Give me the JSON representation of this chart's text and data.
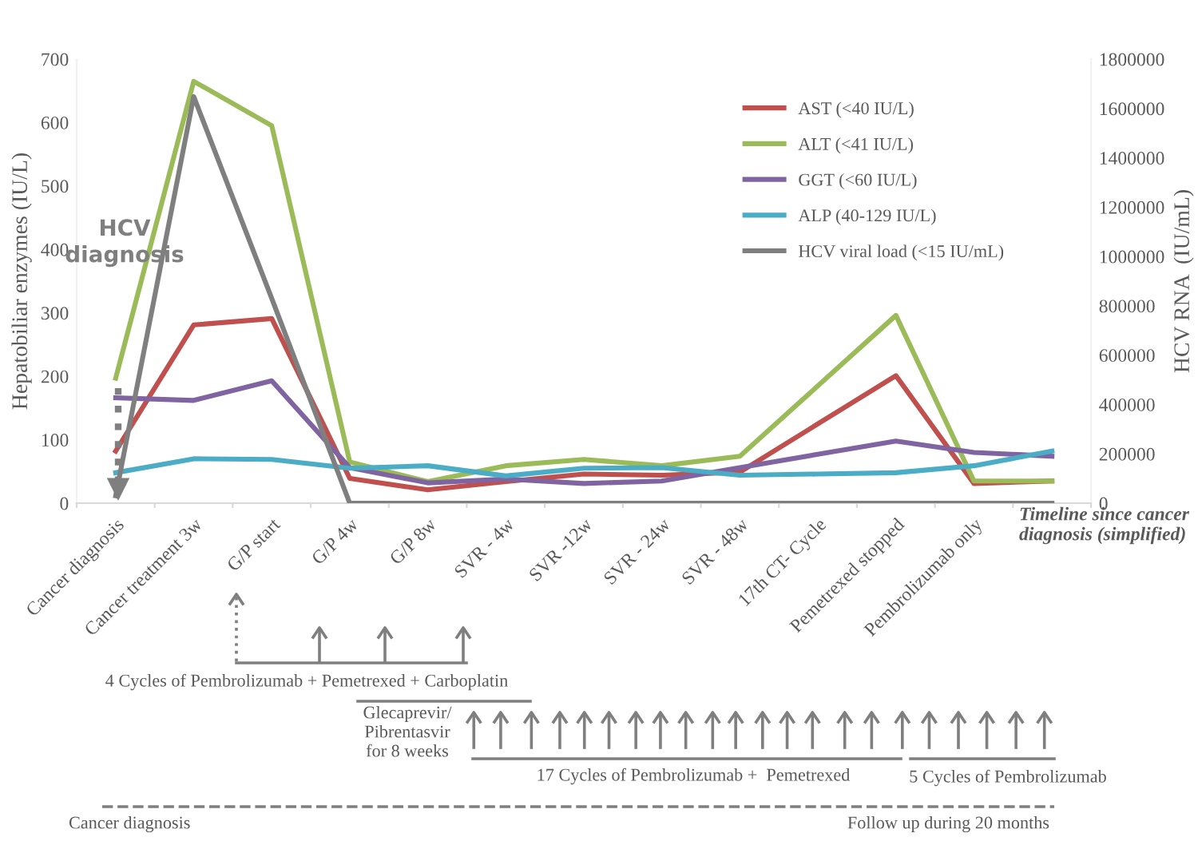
{
  "chart_data": {
    "type": "line",
    "ylabel": "Hepatobiliar enzymes (IU/L)",
    "y2label": "HCV RNA  (IU/mL)",
    "categories": [
      "Cancer diagnosis",
      "Cancer treatment 3w",
      "G/P start",
      "G/P 4w",
      "G/P 8w",
      "SVR - 4w",
      "SVR -12w",
      "SVR - 24w",
      "SVR - 48w",
      "17th CT- Cycle",
      "Pemetrexed stopped",
      "Pembrolizumab only",
      null
    ],
    "series": [
      {
        "name": "AST (<40 IU/L)",
        "color": "#c0504d",
        "values": [
          82,
          281,
          291,
          39,
          21,
          34,
          46,
          44,
          49,
          125,
          201,
          31,
          35
        ]
      },
      {
        "name": "ALT (<41 IU/L)",
        "color": "#9bbb59",
        "values": [
          197,
          665,
          595,
          65,
          34,
          59,
          69,
          59,
          74,
          185,
          296,
          35,
          35
        ]
      },
      {
        "name": "GGT (<60 IU/L)",
        "color": "#8064a2",
        "values": [
          166,
          162,
          193,
          56,
          32,
          38,
          31,
          35,
          56,
          77,
          98,
          80,
          74
        ]
      },
      {
        "name": "ALP (40-129 IU/L)",
        "color": "#4bacc6",
        "values": [
          48,
          70,
          69,
          55,
          59,
          43,
          55,
          56,
          44,
          46,
          48,
          59,
          82
        ]
      },
      {
        "name": "HCV viral load (<15 IU/mL)",
        "color": "#7f7f7f",
        "axis": "y2",
        "values": [
          30000,
          1648000,
          830000,
          0,
          0,
          0,
          0,
          0,
          0,
          0,
          0,
          0,
          0
        ]
      }
    ],
    "ylim": [
      0,
      700
    ],
    "yticks": [
      0,
      100,
      200,
      300,
      400,
      500,
      600,
      700
    ],
    "y2lim": [
      0,
      1800000
    ],
    "y2ticks": [
      0,
      200000,
      400000,
      600000,
      800000,
      1000000,
      1200000,
      1400000,
      1600000,
      1800000
    ],
    "grid": false,
    "legend": "top right",
    "marker": "none",
    "line_style": "solid",
    "annotations": [
      "HCV\ndiagnosis",
      "Timeline since cancer\ndiagnosis (simplified)",
      "4 Cycles of Pembrolizumab + Pemetrexed + Carboplatin",
      "Glecaprevir/\nPibrentasvir\nfor 8 weeks",
      "17 Cycles of Pembrolizumab +  Pemetrexed",
      "5 Cycles of Pembrolizumab",
      "Cancer diagnosis",
      "Follow up during 20 months"
    ]
  }
}
